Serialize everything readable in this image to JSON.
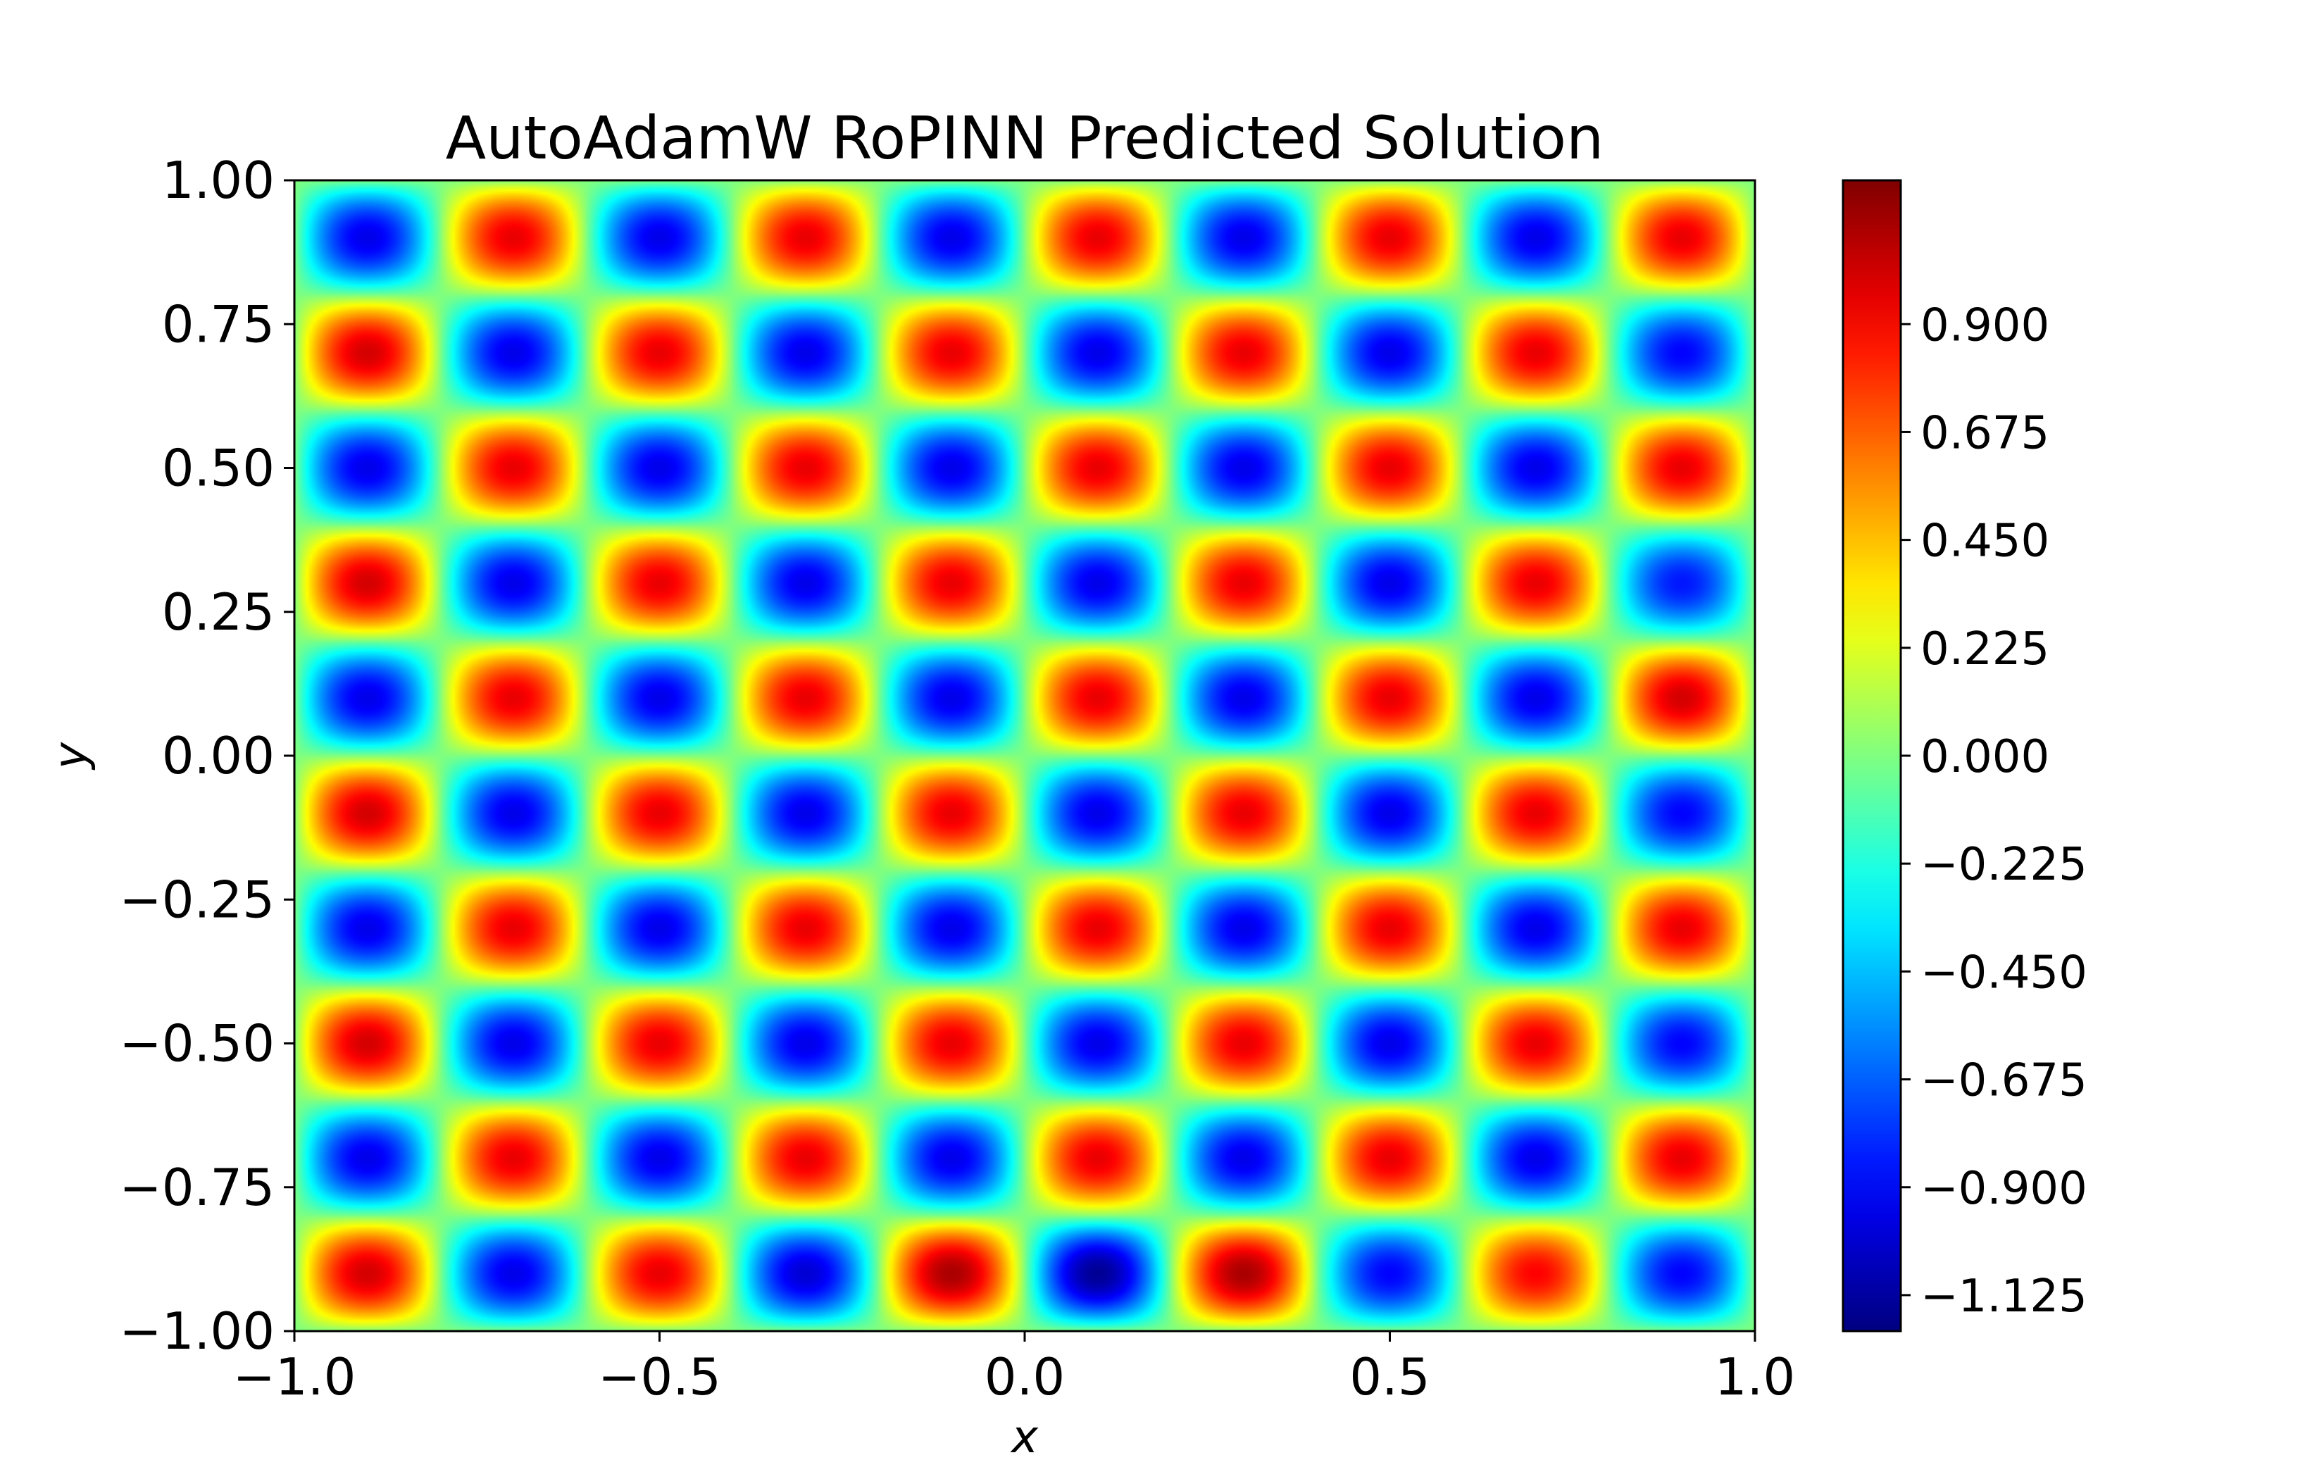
{
  "chart_data": {
    "type": "heatmap",
    "title": "AutoAdamW RoPINN Predicted Solution",
    "xlabel": "x",
    "ylabel": "y",
    "xlim": [
      -1.0,
      1.0
    ],
    "ylim": [
      -1.0,
      1.0
    ],
    "x_ticks": [
      "−1.0",
      "−0.5",
      "0.0",
      "0.5",
      "1.0"
    ],
    "x_tick_values": [
      -1.0,
      -0.5,
      0.0,
      0.5,
      1.0
    ],
    "y_ticks": [
      "−1.00",
      "−0.75",
      "−0.50",
      "−0.25",
      "0.00",
      "0.25",
      "0.50",
      "0.75",
      "1.00"
    ],
    "y_tick_values": [
      -1.0,
      -0.75,
      -0.5,
      -0.25,
      0.0,
      0.25,
      0.5,
      0.75,
      1.0
    ],
    "colormap": "jet",
    "value_range": [
      -1.2,
      1.2
    ],
    "colorbar_ticks": [
      "−1.125",
      "−0.900",
      "−0.675",
      "−0.450",
      "−0.225",
      "0.000",
      "0.225",
      "0.450",
      "0.675",
      "0.900"
    ],
    "colorbar_tick_values": [
      -1.125,
      -0.9,
      -0.675,
      -0.45,
      -0.225,
      0.0,
      0.225,
      0.45,
      0.675,
      0.9
    ],
    "field": {
      "pattern": "checkerboard of blobs, value ≈ sin(5πx)·sin(5πy)",
      "grid_centers_x": [
        -0.9,
        -0.7,
        -0.5,
        -0.3,
        -0.1,
        0.1,
        0.3,
        0.5,
        0.7,
        0.9
      ],
      "grid_centers_y": [
        0.9,
        0.7,
        0.5,
        0.3,
        0.1,
        -0.1,
        -0.3,
        -0.5,
        -0.7,
        -0.9
      ],
      "peak_values_by_row": [
        [
          -0.95,
          0.95,
          -0.95,
          0.95,
          -0.95,
          0.95,
          -0.95,
          0.95,
          -0.95,
          0.95
        ],
        [
          1.0,
          -0.95,
          0.95,
          -0.95,
          0.95,
          -0.95,
          0.95,
          -0.95,
          0.95,
          -0.9
        ],
        [
          -0.95,
          0.95,
          -0.95,
          0.95,
          -0.95,
          0.95,
          -0.95,
          0.95,
          -0.95,
          0.95
        ],
        [
          1.0,
          -0.95,
          0.95,
          -0.95,
          0.95,
          -0.95,
          0.95,
          -0.95,
          0.95,
          -0.85
        ],
        [
          -0.95,
          0.95,
          -0.95,
          0.95,
          -0.95,
          0.95,
          -0.95,
          0.95,
          -0.95,
          1.0
        ],
        [
          1.0,
          -0.95,
          0.95,
          -0.95,
          0.95,
          -0.95,
          0.95,
          -0.95,
          0.95,
          -0.9
        ],
        [
          -0.95,
          0.95,
          -0.95,
          0.95,
          -0.95,
          0.95,
          -0.95,
          0.95,
          -0.95,
          0.95
        ],
        [
          1.0,
          -0.95,
          0.95,
          -0.95,
          0.95,
          -0.95,
          0.95,
          -0.95,
          0.95,
          -0.9
        ],
        [
          -0.95,
          0.95,
          -0.95,
          0.95,
          -0.95,
          0.95,
          -0.95,
          0.95,
          -0.95,
          0.95
        ],
        [
          1.0,
          -0.95,
          0.95,
          -1.0,
          1.1,
          -1.15,
          1.1,
          -0.9,
          0.9,
          -0.9
        ]
      ]
    }
  }
}
